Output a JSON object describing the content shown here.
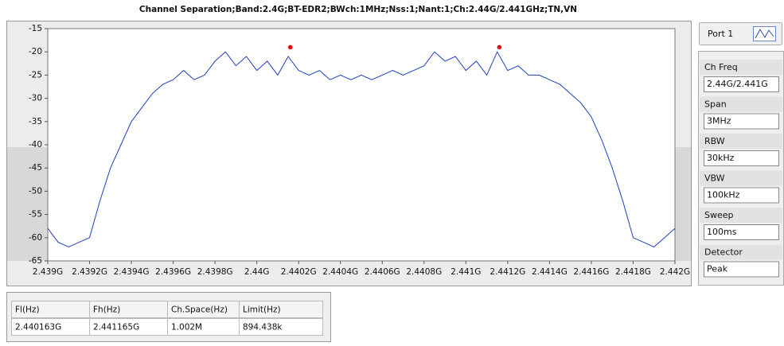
{
  "chart_data": {
    "type": "line",
    "title": "Channel Separation;Band:2.4G;BT-EDR2;BWch:1MHz;Nss:1;Nant:1;Ch:2.44G/2.441GHz;TN,VN",
    "xlim": [
      2.439,
      2.442
    ],
    "xticks": [
      {
        "value": 2.439,
        "label": "2.439G"
      },
      {
        "value": 2.4392,
        "label": "2.4392G"
      },
      {
        "value": 2.4394,
        "label": "2.4394G"
      },
      {
        "value": 2.4396,
        "label": "2.4396G"
      },
      {
        "value": 2.4398,
        "label": "2.4398G"
      },
      {
        "value": 2.44,
        "label": "2.44G"
      },
      {
        "value": 2.4402,
        "label": "2.4402G"
      },
      {
        "value": 2.4404,
        "label": "2.4404G"
      },
      {
        "value": 2.4406,
        "label": "2.4406G"
      },
      {
        "value": 2.4408,
        "label": "2.4408G"
      },
      {
        "value": 2.441,
        "label": "2.441G"
      },
      {
        "value": 2.4412,
        "label": "2.4412G"
      },
      {
        "value": 2.4414,
        "label": "2.4414G"
      },
      {
        "value": 2.4416,
        "label": "2.4416G"
      },
      {
        "value": 2.4418,
        "label": "2.4418G"
      },
      {
        "value": 2.442,
        "label": "2.442G"
      }
    ],
    "ylim": [
      -65,
      -15
    ],
    "yticks": [
      -15,
      -20,
      -25,
      -30,
      -35,
      -40,
      -45,
      -50,
      -55,
      -60,
      -65
    ],
    "series": [
      {
        "color": "#1f3fbf",
        "x": [
          2.439,
          2.43905,
          2.4391,
          2.43915,
          2.4392,
          2.43925,
          2.4393,
          2.43935,
          2.4394,
          2.43945,
          2.4395,
          2.43955,
          2.4396,
          2.43965,
          2.4397,
          2.43975,
          2.4398,
          2.43985,
          2.4399,
          2.43995,
          2.44,
          2.44005,
          2.4401,
          2.44015,
          2.4402,
          2.44025,
          2.4403,
          2.44035,
          2.4404,
          2.44045,
          2.4405,
          2.44055,
          2.4406,
          2.44065,
          2.4407,
          2.44075,
          2.4408,
          2.44085,
          2.4409,
          2.44095,
          2.441,
          2.44105,
          2.4411,
          2.44115,
          2.4412,
          2.44125,
          2.4413,
          2.44135,
          2.4414,
          2.44145,
          2.4415,
          2.44155,
          2.4416,
          2.44165,
          2.4417,
          2.44175,
          2.4418,
          2.44185,
          2.4419,
          2.44195,
          2.442
        ],
        "values": [
          -58,
          -61,
          -62,
          -61,
          -60,
          -52,
          -45,
          -40,
          -35,
          -32,
          -29,
          -27,
          -26,
          -24,
          -26,
          -25,
          -22,
          -20,
          -23,
          -21,
          -24,
          -22,
          -25,
          -21,
          -24,
          -25,
          -24,
          -26,
          -25,
          -26,
          -25,
          -26,
          -25,
          -24,
          -25,
          -24,
          -23,
          -20,
          -22,
          -21,
          -24,
          -22,
          -25,
          -20,
          -24,
          -23,
          -25,
          -25,
          -26,
          -27,
          -29,
          -31,
          -34,
          -39,
          -45,
          -52,
          -60,
          -61,
          -62,
          -60,
          -58
        ]
      },
      {
        "color": "#e01010",
        "x": [
          2.44016,
          2.44116
        ],
        "values": [
          -19,
          -19
        ]
      }
    ]
  },
  "port": "Port 1",
  "settings": [
    {
      "label": "Ch Freq",
      "value": "2.44G/2.441G"
    },
    {
      "label": "Span",
      "value": "3MHz"
    },
    {
      "label": "RBW",
      "value": "30kHz"
    },
    {
      "label": "VBW",
      "value": "100kHz"
    },
    {
      "label": "Sweep",
      "value": "100ms"
    },
    {
      "label": "Detector",
      "value": "Peak"
    }
  ],
  "table": {
    "header": [
      "Fl(Hz)",
      "Fh(Hz)",
      "Ch.Space(Hz)",
      "Limit(Hz)"
    ],
    "rows": [
      [
        "2.440163G",
        "2.441165G",
        "1.002M",
        "894.438k"
      ]
    ]
  }
}
